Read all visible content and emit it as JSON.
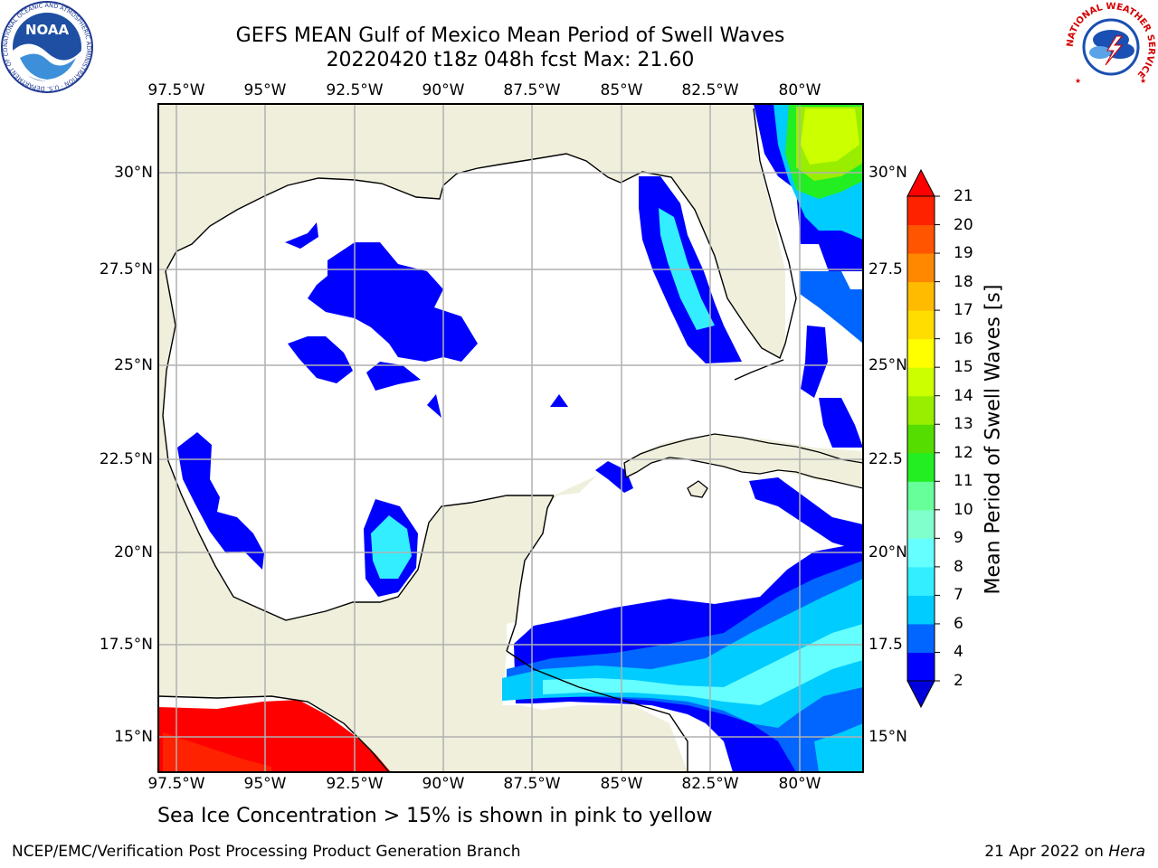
{
  "header": {
    "title_line1": "GEFS MEAN Gulf of Mexico Mean Period of Swell Waves",
    "title_line2": "20220420 t18z 048h fcst   Max: 21.60"
  },
  "map": {
    "lon_labels": [
      "97.5°W",
      "95°W",
      "92.5°W",
      "90°W",
      "87.5°W",
      "85°W",
      "82.5°W",
      "80°W"
    ],
    "lat_labels_left": [
      "30°N",
      "27.5°N",
      "25°N",
      "22.5°N",
      "20°N",
      "17.5°N",
      "15°N"
    ],
    "lat_labels_right": [
      "30°N",
      "27.5",
      "25°N",
      "22.5",
      "20°N",
      "17.5",
      "15°N"
    ],
    "grid": true,
    "colors": {
      "land": "#efefdc",
      "ocean_no_data": "#ffffff",
      "coast": "#000000",
      "grid": "#b0b0b0"
    }
  },
  "colorbar": {
    "label": "Mean Period of Swell Waves [s]",
    "ticks": [
      "21",
      "20",
      "19",
      "18",
      "17",
      "16",
      "15",
      "14",
      "13",
      "12",
      "11",
      "10",
      "9",
      "8",
      "7",
      "6",
      "4",
      "2"
    ],
    "levels": [
      {
        "value": "2-4",
        "color": "#0000ff"
      },
      {
        "value": "4-6",
        "color": "#0066ff"
      },
      {
        "value": "6-7",
        "color": "#00ccff"
      },
      {
        "value": "7-8",
        "color": "#33eeff"
      },
      {
        "value": "8-9",
        "color": "#66ffff"
      },
      {
        "value": "9-10",
        "color": "#80ffcc"
      },
      {
        "value": "10-11",
        "color": "#66ff99"
      },
      {
        "value": "11-12",
        "color": "#22ee22"
      },
      {
        "value": "12-13",
        "color": "#55dd00"
      },
      {
        "value": "13-14",
        "color": "#99ee00"
      },
      {
        "value": "14-15",
        "color": "#ccff00"
      },
      {
        "value": "15-16",
        "color": "#ffff00"
      },
      {
        "value": "16-17",
        "color": "#ffdd00"
      },
      {
        "value": "17-18",
        "color": "#ffbb00"
      },
      {
        "value": "18-19",
        "color": "#ff8800"
      },
      {
        "value": "19-20",
        "color": "#ff5500"
      },
      {
        "value": "20-21",
        "color": "#ff2200"
      }
    ],
    "under_color": "#0000dd",
    "over_color": "#ff0000"
  },
  "footer": {
    "subtitle": "Sea Ice Concentration > 15% is shown in pink to yellow",
    "credit": "NCEP/EMC/Verification Post Processing Product Generation Branch",
    "date": "21 Apr 2022 on",
    "machine": "Hera"
  },
  "logos": {
    "noaa_text": "NOAA",
    "noaa_ring_text": "NATIONAL OCEANIC AND ATMOSPHERIC ADMINISTRATION · U.S. DEPARTMENT OF COMMERCE",
    "nws_ring_text": "NATIONAL WEATHER SERVICE"
  }
}
